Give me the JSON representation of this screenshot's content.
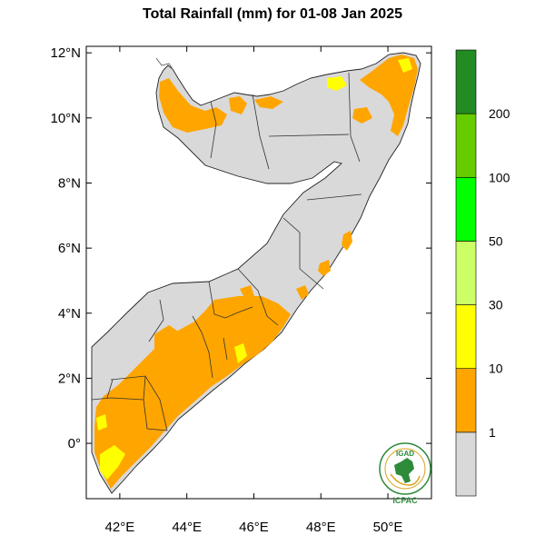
{
  "title": "Total Rainfall (mm) for 01-08 Jan 2025",
  "map": {
    "lon_range": [
      41,
      51.3
    ],
    "lat_range": [
      -1.7,
      12.2
    ],
    "lat_ticks": [
      {
        "value": 12,
        "label": "12°N"
      },
      {
        "value": 10,
        "label": "10°N"
      },
      {
        "value": 8,
        "label": "8°N"
      },
      {
        "value": 6,
        "label": "6°N"
      },
      {
        "value": 4,
        "label": "4°N"
      },
      {
        "value": 2,
        "label": "2°N"
      },
      {
        "value": 0,
        "label": "0°"
      }
    ],
    "lon_ticks": [
      {
        "value": 42,
        "label": "42°E"
      },
      {
        "value": 44,
        "label": "44°E"
      },
      {
        "value": 46,
        "label": "46°E"
      },
      {
        "value": 48,
        "label": "48°E"
      },
      {
        "value": 50,
        "label": "50°E"
      }
    ],
    "land_color": "#d9d9d9",
    "border_color": "#333333"
  },
  "colorbar": {
    "classes": [
      {
        "range": "< 1 mm",
        "color": "#d9d9d9"
      },
      {
        "range": "1-10 mm",
        "color": "#ffa500"
      },
      {
        "range": "10-30 mm",
        "color": "#ffff00"
      },
      {
        "range": "30-50 mm",
        "color": "#ccff66"
      },
      {
        "range": "50-100 mm",
        "color": "#00ff00"
      },
      {
        "range": "100-200 mm",
        "color": "#66cc00"
      },
      {
        "range": "> 200 mm",
        "color": "#228b22"
      }
    ],
    "labels": [
      "1",
      "10",
      "30",
      "50",
      "100",
      "200"
    ]
  },
  "logo": {
    "top_text": "IGAD",
    "bottom_text": "ICPAC",
    "colors": {
      "green": "#2e8b3a",
      "gold": "#d9a520"
    }
  }
}
